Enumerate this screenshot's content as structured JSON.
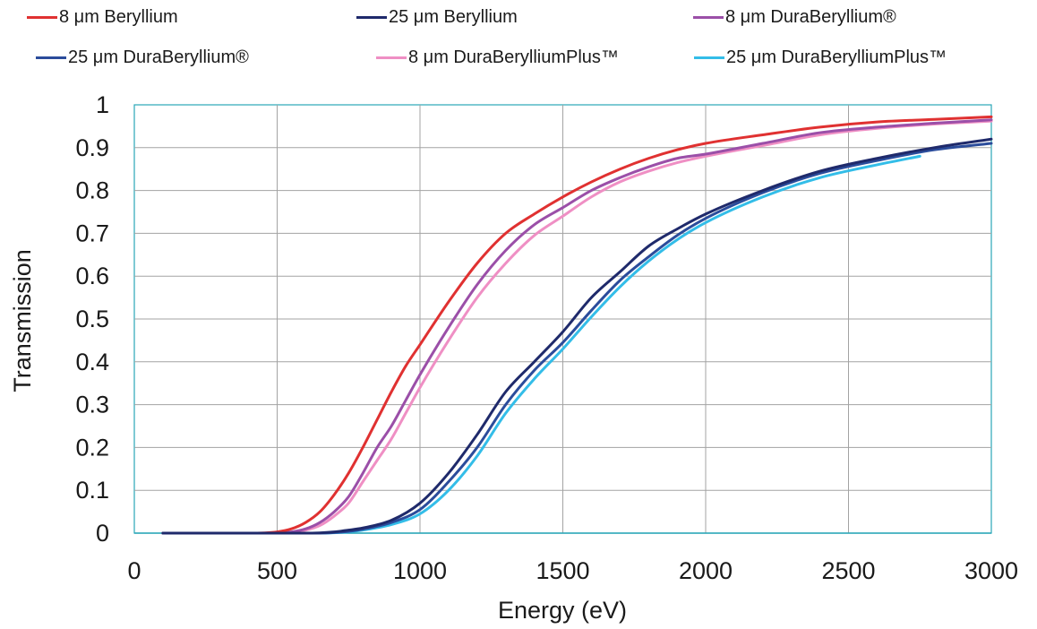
{
  "chart_data": {
    "type": "line",
    "title": "",
    "xlabel": "Energy (eV)",
    "ylabel": "Transmission",
    "xlim": [
      0,
      3000
    ],
    "ylim": [
      0,
      1
    ],
    "x_ticks": [
      "0",
      "500",
      "1000",
      "1500",
      "2000",
      "2500",
      "3000"
    ],
    "y_ticks": [
      "0",
      "0.1",
      "0.2",
      "0.3",
      "0.4",
      "0.5",
      "0.6",
      "0.7",
      "0.8",
      "0.9",
      "1"
    ],
    "grid": true,
    "legend_position": "top",
    "series": [
      {
        "name": "8  μm Beryllium",
        "color": "#e03131",
        "x": [
          100,
          400,
          500,
          550,
          600,
          650,
          700,
          750,
          800,
          850,
          900,
          950,
          1000,
          1100,
          1200,
          1300,
          1400,
          1500,
          1600,
          1700,
          1800,
          1900,
          2000,
          2200,
          2400,
          2600,
          2800,
          3000
        ],
        "y": [
          0,
          0,
          0.003,
          0.01,
          0.025,
          0.05,
          0.09,
          0.14,
          0.2,
          0.265,
          0.33,
          0.39,
          0.44,
          0.54,
          0.63,
          0.7,
          0.745,
          0.785,
          0.82,
          0.85,
          0.875,
          0.895,
          0.91,
          0.93,
          0.948,
          0.96,
          0.966,
          0.972
        ]
      },
      {
        "name": "25  μm Beryllium",
        "color": "#1f2a6b",
        "x": [
          100,
          600,
          700,
          750,
          800,
          900,
          1000,
          1100,
          1200,
          1300,
          1400,
          1500,
          1600,
          1700,
          1800,
          1900,
          2000,
          2200,
          2400,
          2600,
          2800,
          3000
        ],
        "y": [
          0,
          0,
          0.003,
          0.007,
          0.012,
          0.03,
          0.07,
          0.14,
          0.23,
          0.33,
          0.4,
          0.47,
          0.55,
          0.61,
          0.67,
          0.71,
          0.745,
          0.8,
          0.845,
          0.875,
          0.9,
          0.92
        ]
      },
      {
        "name": "8  μm DuraBeryllium®",
        "color": "#9b4fa8",
        "x": [
          100,
          450,
          550,
          600,
          650,
          700,
          750,
          800,
          850,
          900,
          950,
          1000,
          1100,
          1200,
          1300,
          1400,
          1500,
          1600,
          1700,
          1800,
          1900,
          2000,
          2200,
          2400,
          2600,
          2800,
          3000
        ],
        "y": [
          0,
          0,
          0.003,
          0.01,
          0.025,
          0.05,
          0.085,
          0.14,
          0.2,
          0.25,
          0.31,
          0.37,
          0.48,
          0.58,
          0.66,
          0.72,
          0.76,
          0.8,
          0.83,
          0.855,
          0.875,
          0.885,
          0.91,
          0.935,
          0.948,
          0.957,
          0.965
        ]
      },
      {
        "name": "25  μm DuraBeryllium®",
        "color": "#2b4c9b",
        "x": [
          100,
          650,
          750,
          800,
          900,
          1000,
          1100,
          1200,
          1300,
          1400,
          1500,
          1600,
          1700,
          1800,
          1900,
          2000,
          2200,
          2400,
          2600,
          2800,
          3000
        ],
        "y": [
          0,
          0,
          0.004,
          0.009,
          0.025,
          0.055,
          0.12,
          0.2,
          0.3,
          0.38,
          0.445,
          0.52,
          0.59,
          0.645,
          0.695,
          0.735,
          0.795,
          0.84,
          0.87,
          0.895,
          0.91
        ]
      },
      {
        "name": "8  μm DuraBerylliumPlus™",
        "color": "#ef8fc4",
        "x": [
          100,
          450,
          550,
          600,
          650,
          700,
          750,
          800,
          850,
          900,
          950,
          1000,
          1100,
          1200,
          1300,
          1400,
          1500,
          1600,
          1700,
          1800,
          1900,
          2000,
          2200,
          2400,
          2600,
          2800,
          3000
        ],
        "y": [
          0,
          0,
          0.002,
          0.007,
          0.018,
          0.04,
          0.07,
          0.12,
          0.17,
          0.22,
          0.28,
          0.34,
          0.45,
          0.55,
          0.63,
          0.695,
          0.74,
          0.785,
          0.82,
          0.845,
          0.865,
          0.88,
          0.905,
          0.93,
          0.945,
          0.955,
          0.962
        ]
      },
      {
        "name": "25  μm DuraBerylliumPlus™",
        "color": "#33bde8",
        "x": [
          100,
          650,
          750,
          800,
          900,
          1000,
          1100,
          1200,
          1300,
          1400,
          1500,
          1600,
          1700,
          1800,
          1900,
          2000,
          2200,
          2400,
          2600,
          2750
        ],
        "y": [
          0,
          0,
          0.003,
          0.007,
          0.02,
          0.045,
          0.1,
          0.18,
          0.28,
          0.36,
          0.43,
          0.505,
          0.575,
          0.635,
          0.685,
          0.725,
          0.785,
          0.83,
          0.86,
          0.88
        ]
      }
    ]
  }
}
